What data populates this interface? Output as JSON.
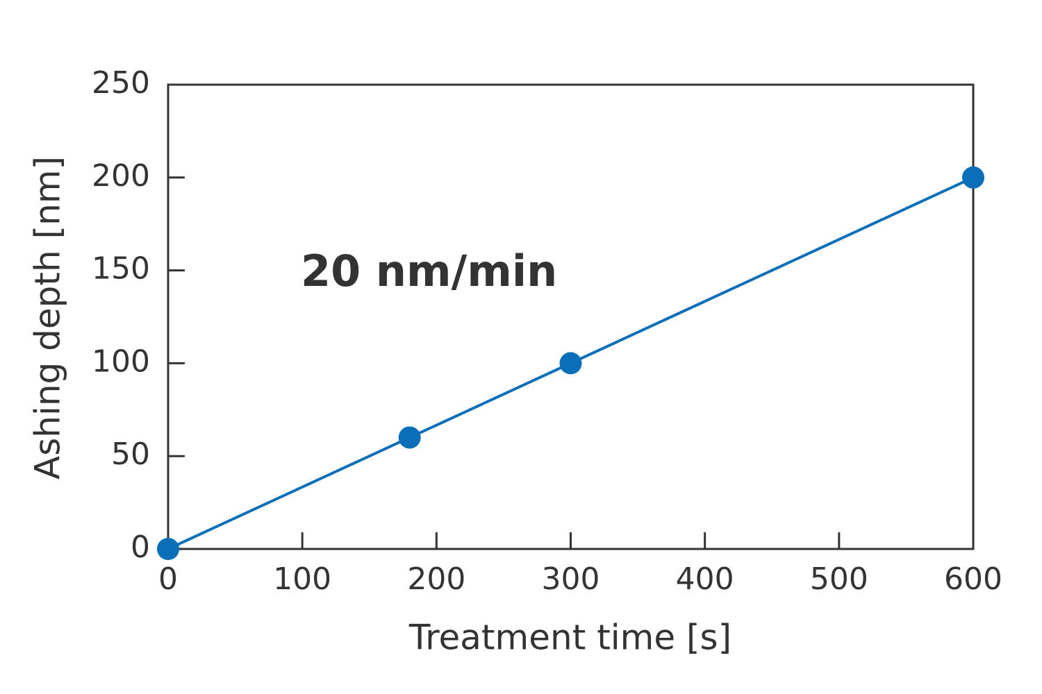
{
  "chart_data": {
    "type": "line",
    "x": [
      0,
      180,
      300,
      600
    ],
    "values": [
      0,
      60,
      100,
      200
    ],
    "color": "#0a6fb8",
    "markers": true,
    "xlabel": "Treatment time [s]",
    "ylabel": "Ashing depth [nm]",
    "annotation": "20 nm/min",
    "xlim": [
      0,
      600
    ],
    "ylim": [
      0,
      250
    ],
    "xticks": [
      0,
      100,
      200,
      300,
      400,
      500,
      600
    ],
    "yticks": [
      0,
      50,
      100,
      150,
      200,
      250
    ]
  }
}
